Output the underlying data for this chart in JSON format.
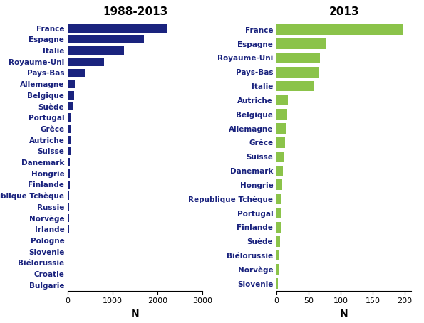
{
  "left_title": "1988-2013",
  "right_title": "2013",
  "left_countries": [
    "France",
    "Espagne",
    "Italie",
    "Royaume-Uni",
    "Pays-Bas",
    "Allemagne",
    "Belgique",
    "Suède",
    "Portugal",
    "Grèce",
    "Autriche",
    "Suisse",
    "Danemark",
    "Hongrie",
    "Finlande",
    "Republique Tchèque",
    "Russie",
    "Norvège",
    "Irlande",
    "Pologne",
    "Slovenie",
    "Biélorussie",
    "Croatie",
    "Bulgarie"
  ],
  "left_values": [
    2200,
    1700,
    1250,
    800,
    380,
    160,
    140,
    120,
    70,
    65,
    60,
    55,
    50,
    45,
    40,
    35,
    30,
    25,
    22,
    18,
    15,
    12,
    10,
    8
  ],
  "right_countries": [
    "France",
    "Espagne",
    "Royaume-Uni",
    "Pays-Bas",
    "Italie",
    "Autriche",
    "Belgique",
    "Allemagne",
    "Grèce",
    "Suisse",
    "Danemark",
    "Hongrie",
    "Republique Tchèque",
    "Portugal",
    "Finlande",
    "Suède",
    "Biélorussie",
    "Norvège",
    "Slovenie"
  ],
  "right_values": [
    196,
    78,
    68,
    66,
    58,
    18,
    16,
    14,
    13,
    12,
    10,
    9,
    8,
    7,
    6,
    5,
    4,
    3,
    2
  ],
  "left_color": "#1a237e",
  "right_color": "#8bc34a",
  "xlabel": "N",
  "left_xlim": [
    0,
    3000
  ],
  "right_xlim": [
    0,
    210
  ],
  "left_xticks": [
    0,
    1000,
    2000,
    3000
  ],
  "right_xticks": [
    0,
    50,
    100,
    150,
    200
  ],
  "title_fontsize": 11,
  "label_fontsize": 7.5,
  "tick_fontsize": 8,
  "xlabel_fontsize": 10
}
